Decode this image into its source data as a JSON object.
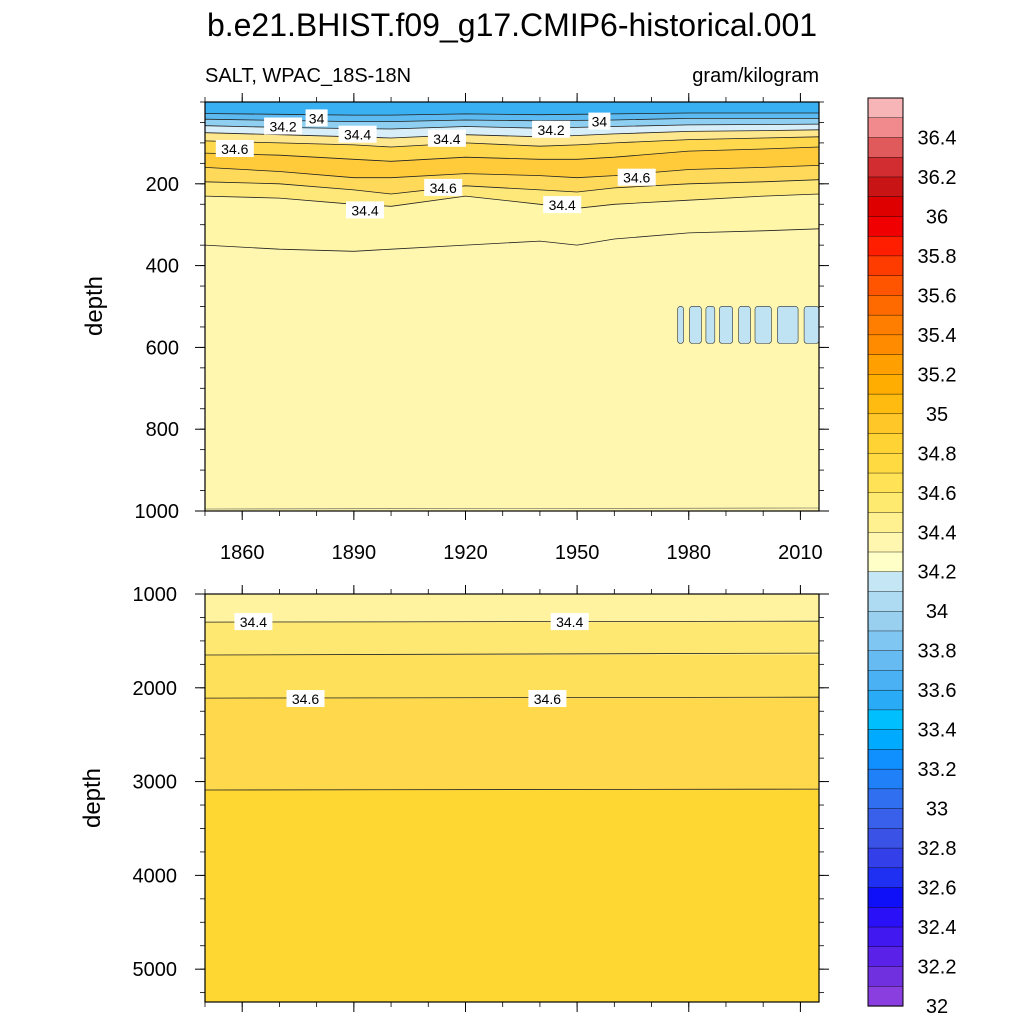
{
  "title": "b.e21.BHIST.f09_g17.CMIP6-historical.001",
  "left_string": "SALT, WPAC_18S-18N",
  "right_string": "gram/kilogram",
  "chart_data": [
    {
      "type": "heatmap",
      "panel": "upper",
      "variable": "SALT",
      "region": "WPAC_18S-18N",
      "units": "gram/kilogram",
      "xlabel": "",
      "ylabel": "depth",
      "xlim": [
        1850,
        2015
      ],
      "ylim": [
        1000,
        0
      ],
      "x_tick_labels": [
        "1860",
        "1890",
        "1920",
        "1950",
        "1980",
        "2010"
      ],
      "x_ticks": [
        1860,
        1890,
        1920,
        1950,
        1980,
        2010
      ],
      "y_tick_labels": [
        "200",
        "400",
        "600",
        "800",
        "1000"
      ],
      "y_ticks": [
        200,
        400,
        600,
        800,
        1000
      ],
      "contour_labels": [
        {
          "text": "34",
          "x": 1880,
          "y": 40
        },
        {
          "text": "34",
          "x": 1956,
          "y": 48
        },
        {
          "text": "34.2",
          "x": 1871,
          "y": 60
        },
        {
          "text": "34.2",
          "x": 1943,
          "y": 68
        },
        {
          "text": "34.4",
          "x": 1891,
          "y": 80
        },
        {
          "text": "34.4",
          "x": 1915,
          "y": 90
        },
        {
          "text": "34.6",
          "x": 1858,
          "y": 115
        },
        {
          "text": "34.6",
          "x": 1966,
          "y": 185
        },
        {
          "text": "34.6",
          "x": 1914,
          "y": 210
        },
        {
          "text": "34.4",
          "x": 1893,
          "y": 265
        },
        {
          "text": "34.4",
          "x": 1946,
          "y": 252
        }
      ],
      "contour_lines": [
        {
          "level": 34.4,
          "x": [
            1850,
            1870,
            1890,
            1900,
            1920,
            1940,
            1950,
            1960,
            1980,
            2000,
            2015
          ],
          "y": [
            350,
            360,
            365,
            360,
            350,
            340,
            350,
            335,
            320,
            315,
            310
          ]
        },
        {
          "level": 34.6,
          "x": [
            1850,
            1870,
            1890,
            1900,
            1920,
            1940,
            1950,
            1960,
            1980,
            2000,
            2015
          ],
          "y": [
            230,
            235,
            250,
            255,
            230,
            250,
            260,
            250,
            240,
            230,
            225
          ]
        },
        {
          "level": 34.6,
          "x": [
            1850,
            1870,
            1890,
            1900,
            1920,
            1940,
            1950,
            1960,
            1980,
            2000,
            2015
          ],
          "y": [
            195,
            200,
            215,
            225,
            205,
            215,
            220,
            210,
            200,
            195,
            190
          ]
        },
        {
          "level": 34.8,
          "x": [
            1850,
            1870,
            1890,
            1900,
            1920,
            1940,
            1950,
            1960,
            1980,
            2000,
            2015
          ],
          "y": [
            160,
            170,
            185,
            185,
            175,
            180,
            185,
            180,
            165,
            160,
            155
          ]
        },
        {
          "level": 34.8,
          "x": [
            1850,
            1870,
            1890,
            1900,
            1920,
            1940,
            1950,
            1960,
            1980,
            2000,
            2015
          ],
          "y": [
            125,
            130,
            140,
            145,
            135,
            140,
            140,
            135,
            120,
            115,
            110
          ]
        },
        {
          "level": 34.6,
          "x": [
            1850,
            1870,
            1890,
            1900,
            1920,
            1940,
            1950,
            1960,
            1980,
            2000,
            2015
          ],
          "y": [
            95,
            100,
            105,
            110,
            100,
            108,
            105,
            100,
            92,
            88,
            85
          ]
        },
        {
          "level": 34.4,
          "x": [
            1850,
            1870,
            1890,
            1900,
            1920,
            1940,
            1950,
            1960,
            1980,
            2000,
            2015
          ],
          "y": [
            75,
            80,
            85,
            88,
            80,
            85,
            82,
            78,
            72,
            70,
            68
          ]
        },
        {
          "level": 34.2,
          "x": [
            1850,
            1870,
            1890,
            1900,
            1920,
            1940,
            1950,
            1960,
            1980,
            2000,
            2015
          ],
          "y": [
            58,
            62,
            65,
            66,
            60,
            64,
            62,
            60,
            56,
            55,
            54
          ]
        },
        {
          "level": 34.0,
          "x": [
            1850,
            1870,
            1890,
            1900,
            1920,
            1940,
            1950,
            1960,
            1980,
            2000,
            2015
          ],
          "y": [
            42,
            45,
            48,
            48,
            44,
            46,
            45,
            44,
            40,
            40,
            40
          ]
        },
        {
          "level": 33.8,
          "x": [
            1850,
            1870,
            1890,
            1900,
            1920,
            1940,
            1950,
            1960,
            1980,
            2000,
            2015
          ],
          "y": [
            28,
            30,
            32,
            32,
            29,
            31,
            30,
            29,
            27,
            27,
            27
          ]
        }
      ],
      "low_cells": [
        {
          "x0": 1975,
          "x1": 2015,
          "y0": 480,
          "y1": 610
        }
      ],
      "background_value": 34.3,
      "grid": false
    },
    {
      "type": "heatmap",
      "panel": "lower",
      "variable": "SALT",
      "units": "gram/kilogram",
      "xlabel": "",
      "ylabel": "depth",
      "xlim": [
        1850,
        2015
      ],
      "ylim": [
        5350,
        1000
      ],
      "y_tick_labels": [
        "1000",
        "2000",
        "3000",
        "4000",
        "5000"
      ],
      "y_ticks": [
        1000,
        2000,
        3000,
        4000,
        5000
      ],
      "x_ticks": [
        1860,
        1890,
        1920,
        1950,
        1980,
        2010
      ],
      "contour_labels": [
        {
          "text": "34.4",
          "x": 1863,
          "y": 1300
        },
        {
          "text": "34.4",
          "x": 1948,
          "y": 1300
        },
        {
          "text": "34.6",
          "x": 1877,
          "y": 2120
        },
        {
          "text": "34.6",
          "x": 1942,
          "y": 2120
        }
      ],
      "contour_lines": [
        {
          "level": 34.4,
          "x": [
            1850,
            2015
          ],
          "y": [
            1300,
            1290
          ]
        },
        {
          "level": 34.6,
          "x": [
            1850,
            2015
          ],
          "y": [
            1650,
            1630
          ]
        },
        {
          "level": 34.6,
          "x": [
            1850,
            2015
          ],
          "y": [
            2110,
            2100
          ]
        },
        {
          "level": 34.8,
          "x": [
            1850,
            2015
          ],
          "y": [
            3090,
            3080
          ]
        }
      ],
      "bands": [
        {
          "value": 34.5,
          "y0": 1000,
          "y1": 1300
        },
        {
          "value": 34.6,
          "y0": 1300,
          "y1": 1650
        },
        {
          "value": 34.7,
          "y0": 1650,
          "y1": 2110
        },
        {
          "value": 34.8,
          "y0": 2110,
          "y1": 3090
        },
        {
          "value": 34.9,
          "y0": 3090,
          "y1": 5350
        }
      ],
      "grid": false
    }
  ],
  "colorbar": {
    "labels": [
      "36.4",
      "36.2",
      "36",
      "35.8",
      "35.6",
      "35.4",
      "35.2",
      "35",
      "34.8",
      "34.6",
      "34.4",
      "34.2",
      "34",
      "33.8",
      "33.6",
      "33.4",
      "33.2",
      "33",
      "32.8",
      "32.6",
      "32.4",
      "32.2",
      "32"
    ],
    "colors": [
      "#f7b5b7",
      "#f08a8c",
      "#e05a5c",
      "#d22e32",
      "#c81414",
      "#de0000",
      "#f00000",
      "#ff1e00",
      "#ff3c00",
      "#ff5500",
      "#ff6a00",
      "#ff7e00",
      "#ff8c00",
      "#ff9f00",
      "#ffad00",
      "#ffbb10",
      "#ffc828",
      "#ffd334",
      "#ffda40",
      "#ffe256",
      "#ffea70",
      "#fff190",
      "#fff7b0",
      "#ffffc8",
      "#c5e6f5",
      "#aedbf2",
      "#99d0f0",
      "#80c6f2",
      "#66bbf2",
      "#4ab2f4",
      "#2aabf6",
      "#00bfff",
      "#00aaff",
      "#1090ff",
      "#2080f8",
      "#2f6ff0",
      "#3860ea",
      "#3a52e6",
      "#3340ea",
      "#2030f2",
      "#1010f8",
      "#2a10f6",
      "#4218f0",
      "#5a22e8",
      "#7030e0",
      "#8a3ee0"
    ]
  }
}
